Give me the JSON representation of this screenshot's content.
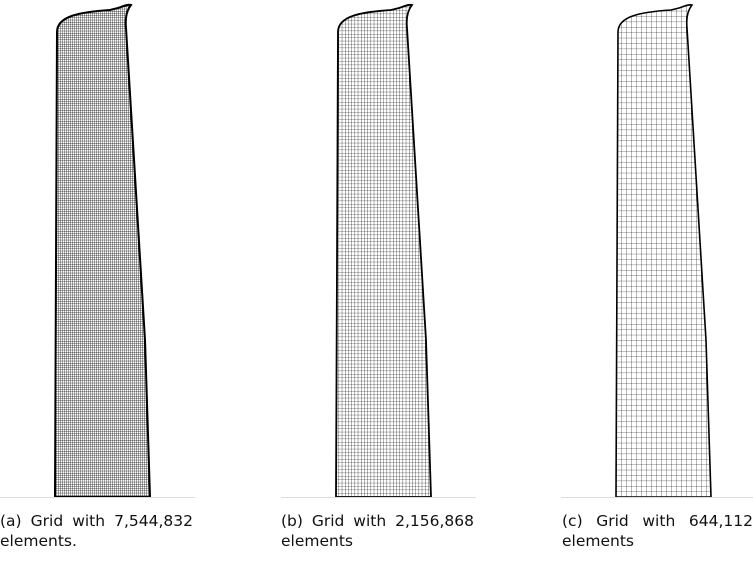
{
  "figures": [
    {
      "caption": "(a) Grid with 7,544,832 elements."
    },
    {
      "caption": "(b) Grid with 2,156,868 elements"
    },
    {
      "caption": "(c) Grid with 644,112 elements"
    }
  ]
}
